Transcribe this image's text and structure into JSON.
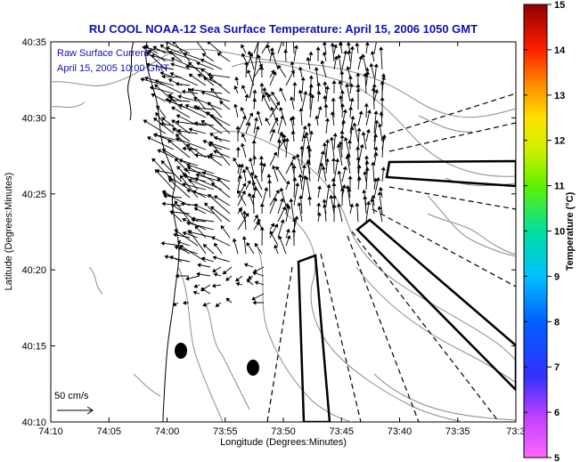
{
  "title": "RU COOL  NOAA-12  Sea Surface Temperature:  April 15, 2006 1050 GMT",
  "colors": {
    "title": "#1010b0",
    "annotation": "#1010b0",
    "contour": "#8c8c8c",
    "arrow": "#000000"
  },
  "annotation": {
    "line1": "Raw Surface Current:",
    "line2": "April 15, 2005 10:00 GMT"
  },
  "scale_label": "50 cm/s",
  "x_axis": {
    "label": "Longitude (Degrees:Minutes)",
    "ticks": [
      "74:10",
      "74:05",
      "74:00",
      "73:55",
      "73:50",
      "73:45",
      "73:40",
      "73:35",
      "73:3"
    ]
  },
  "y_axis": {
    "label": "Latitude (Degrees:Minutes)",
    "ticks": [
      "40:35",
      "40:30",
      "40:25",
      "40:20",
      "40:15",
      "40:10"
    ]
  },
  "colorbar": {
    "label": "Temperature (°C)",
    "ticks": [
      "15",
      "14",
      "13",
      "12",
      "11",
      "10",
      "9",
      "8",
      "7",
      "6",
      "5"
    ],
    "min": 5,
    "max": 15
  }
}
